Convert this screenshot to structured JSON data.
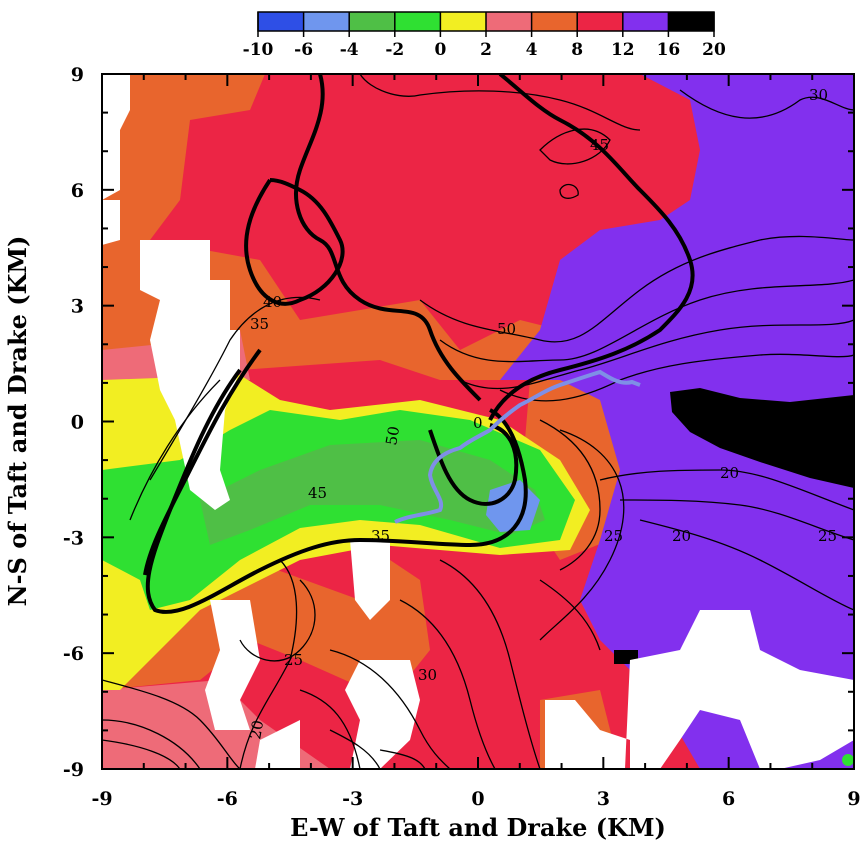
{
  "chart_data": {
    "type": "heatmap",
    "title": "",
    "xlabel": "E-W of Taft and Drake (KM)",
    "ylabel": "N-S of Taft and Drake (KM)",
    "xlim": [
      -9,
      9
    ],
    "ylim": [
      -9,
      9
    ],
    "x_ticks": [
      "-9",
      "-6",
      "-3",
      "0",
      "3",
      "6",
      "9"
    ],
    "y_ticks": [
      "-9",
      "-6",
      "-3",
      "0",
      "3",
      "6",
      "9"
    ],
    "colorbar": {
      "tick_labels": [
        "-10",
        "-6",
        "-4",
        "-2",
        "0",
        "2",
        "4",
        "8",
        "12",
        "16",
        "20"
      ],
      "bins": [
        {
          "from": -10,
          "to": -6,
          "color": "#2e4fe6"
        },
        {
          "from": -6,
          "to": -4,
          "color": "#6f96ee"
        },
        {
          "from": -4,
          "to": -2,
          "color": "#4fbf46"
        },
        {
          "from": -2,
          "to": 0,
          "color": "#2fe032"
        },
        {
          "from": 0,
          "to": 2,
          "color": "#f2ee22"
        },
        {
          "from": 2,
          "to": 4,
          "color": "#ee6b78"
        },
        {
          "from": 4,
          "to": 8,
          "color": "#e8652d"
        },
        {
          "from": 8,
          "to": 12,
          "color": "#ec2545"
        },
        {
          "from": 12,
          "to": 16,
          "color": "#8230ee"
        },
        {
          "from": 16,
          "to": 20,
          "color": "#000000"
        }
      ]
    },
    "contour_labels": [
      "45",
      "40",
      "35",
      "50",
      "0",
      "50",
      "45",
      "35",
      "25",
      "30",
      "20",
      "20",
      "25",
      "20",
      "25",
      "30"
    ],
    "track_color": "#7f8fe6",
    "grid": false
  }
}
